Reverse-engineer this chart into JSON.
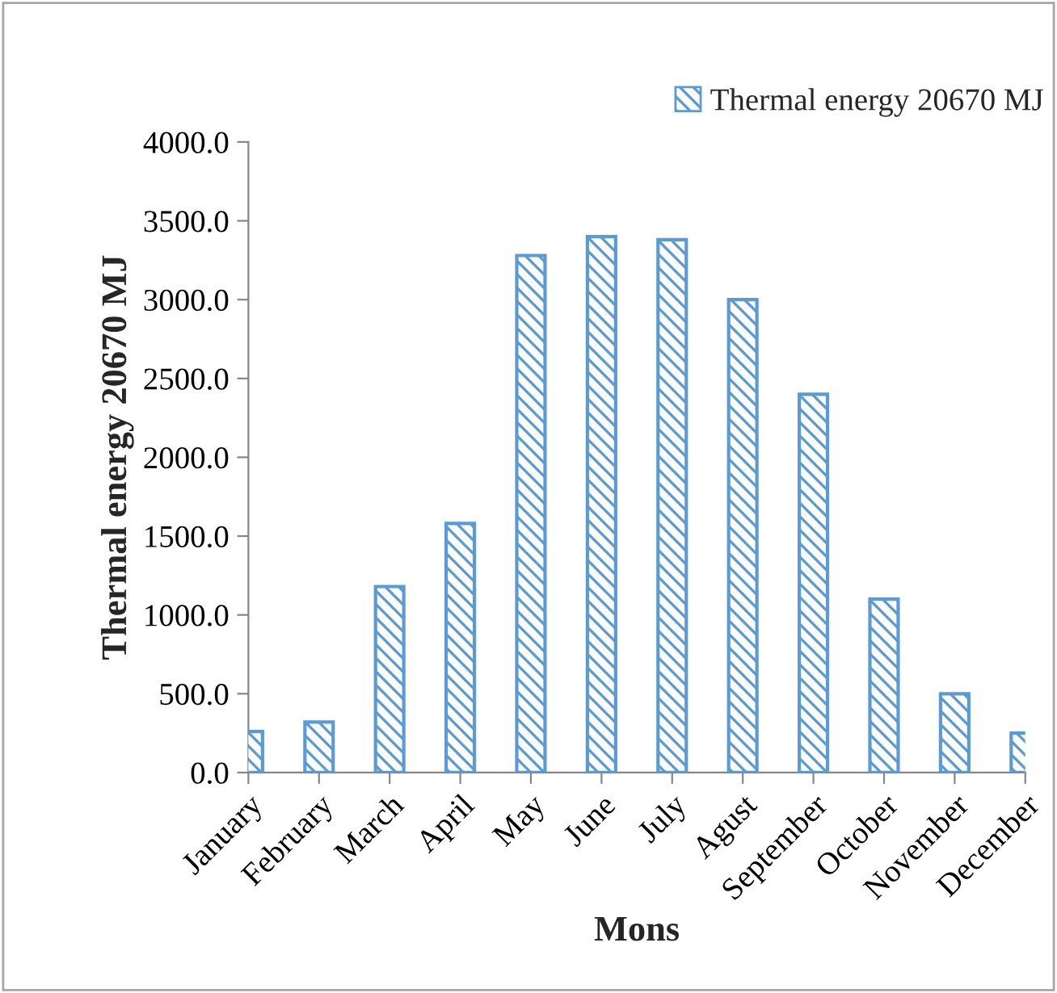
{
  "chart_data": {
    "type": "bar",
    "xlabel": "Mons",
    "ylabel": "Thermal energy 20670 MJ",
    "categories": [
      "January",
      "February",
      "March",
      "April",
      "May",
      "June",
      "July",
      "Agust",
      "September",
      "October",
      "November",
      "December"
    ],
    "series": [
      {
        "name": "Thermal energy 20670 MJ",
        "color": "#5b9bd5",
        "values": [
          260,
          320,
          1180,
          1580,
          3280,
          3400,
          3380,
          3000,
          2400,
          1100,
          500,
          250
        ]
      }
    ],
    "ylim": [
      0,
      4000
    ],
    "yticks": [
      {
        "value": 0,
        "label": "0.0"
      },
      {
        "value": 500,
        "label": "500.0"
      },
      {
        "value": 1000,
        "label": "1000.0"
      },
      {
        "value": 1500,
        "label": "1500.0"
      },
      {
        "value": 2000,
        "label": "2000.0"
      },
      {
        "value": 2500,
        "label": "2500.0"
      },
      {
        "value": 3000,
        "label": "3000.0"
      },
      {
        "value": 3500,
        "label": "3500.0"
      },
      {
        "value": 4000,
        "label": "4000.0"
      }
    ],
    "grid": false,
    "legend": "top right"
  }
}
